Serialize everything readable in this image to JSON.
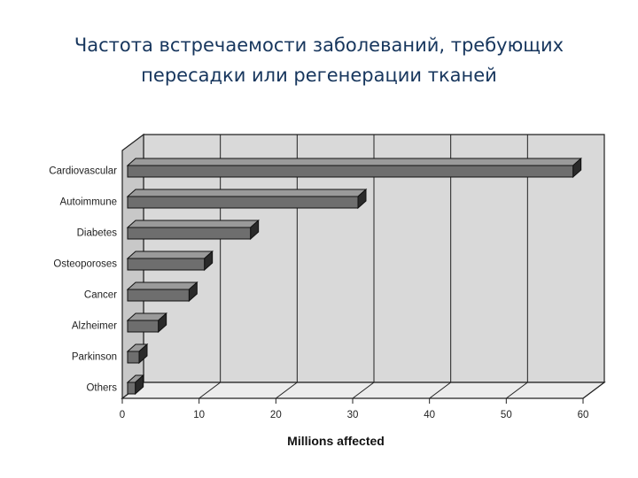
{
  "slide": {
    "title_line1": "Частота встречаемости заболеваний, требующих",
    "title_line2": "пересадки или регенерации тканей"
  },
  "chart_data": {
    "type": "bar",
    "orientation": "horizontal",
    "style": "3d",
    "categories": [
      "Cardiovascular",
      "Autoimmune",
      "Diabetes",
      "Osteoporoses",
      "Cancer",
      "Alzheimer",
      "Parkinson",
      "Others"
    ],
    "values": [
      58,
      30,
      16,
      10,
      8,
      4,
      1.5,
      1
    ],
    "xlabel": "Millions affected",
    "ylabel": "",
    "xlim": [
      0,
      60
    ],
    "xticks": [
      0,
      10,
      20,
      30,
      40,
      50,
      60
    ],
    "grid": true,
    "colors": {
      "bar": "#6e6e6e",
      "wall": "#d9d9d9",
      "floor": "#ececec"
    }
  }
}
